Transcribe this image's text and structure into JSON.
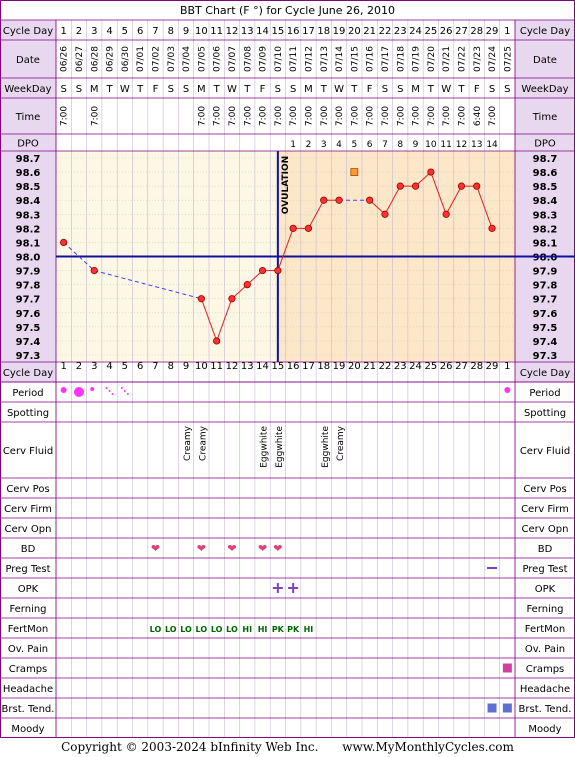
{
  "title": "BBT Chart (F °) for Cycle June 26, 2010",
  "colors": {
    "border": "#800080",
    "header_bg": "#e8d8ef",
    "grid_bg_pre": "#fdf8e6",
    "grid_bg_post": "#fce8c8",
    "temp_line": "#e02020",
    "marker_fill": "#ff3030",
    "coverline": "#1010a0",
    "ovulation_line": "#1010a0",
    "dashed_line": "#4040ff",
    "period_dot": "#ff33ff",
    "heart": "#e0407a",
    "opk": "#8040c0",
    "fertmon_lo": "#006600",
    "square_pink": "#d040a0",
    "square_blue": "#6070d0",
    "orange_square": "#ff9933"
  },
  "row_labels": {
    "cycle_day": "Cycle Day",
    "date": "Date",
    "weekday": "WeekDay",
    "time": "Time",
    "dpo": "DPO",
    "period": "Period",
    "spotting": "Spotting",
    "cerv_fluid": "Cerv Fluid",
    "cerv_pos": "Cerv Pos",
    "cerv_firm": "Cerv Firm",
    "cerv_opn": "Cerv Opn",
    "bd": "BD",
    "preg_test": "Preg Test",
    "opk": "OPK",
    "ferning": "Ferning",
    "fertmon": "FertMon",
    "ov_pain": "Ov. Pain",
    "cramps": "Cramps",
    "headache": "Headache",
    "brst_tend": "Brst. Tend.",
    "moody": "Moody"
  },
  "ovulation_label": "OVULATION",
  "footer": {
    "copyright": "Copyright © 2003-2024 bInfinity Web Inc.",
    "site": "www.MyMonthlyCycles.com"
  },
  "chart_data": {
    "type": "line",
    "title": "BBT Chart (F °) for Cycle June 26, 2010",
    "cycle_days": [
      "1",
      "2",
      "3",
      "4",
      "5",
      "6",
      "7",
      "8",
      "9",
      "10",
      "11",
      "12",
      "13",
      "14",
      "15",
      "16",
      "17",
      "18",
      "19",
      "20",
      "21",
      "22",
      "23",
      "24",
      "25",
      "26",
      "27",
      "28",
      "29",
      "1"
    ],
    "dates": [
      "06/26",
      "06/27",
      "06/28",
      "06/29",
      "06/30",
      "07/01",
      "07/02",
      "07/03",
      "07/04",
      "07/05",
      "07/06",
      "07/07",
      "07/08",
      "07/09",
      "07/10",
      "07/11",
      "07/12",
      "07/13",
      "07/14",
      "07/15",
      "07/16",
      "07/17",
      "07/18",
      "07/19",
      "07/20",
      "07/21",
      "07/22",
      "07/23",
      "07/24",
      "07/25"
    ],
    "weekdays": [
      "S",
      "S",
      "M",
      "T",
      "W",
      "T",
      "F",
      "S",
      "S",
      "M",
      "T",
      "W",
      "T",
      "F",
      "S",
      "S",
      "M",
      "T",
      "W",
      "T",
      "F",
      "S",
      "S",
      "M",
      "T",
      "W",
      "T",
      "F",
      "S",
      "S"
    ],
    "times": [
      "7:00",
      "",
      "7:00",
      "",
      "",
      "",
      "",
      "",
      "",
      "7:00",
      "7:00",
      "7:00",
      "7:00",
      "7:00",
      "7:00",
      "7:00",
      "7:00",
      "7:00",
      "7:00",
      "7:00",
      "7:00",
      "7:00",
      "7:00",
      "7:00",
      "7:00",
      "7:00",
      "7:00",
      "6:40",
      "7:00",
      ""
    ],
    "dpo": [
      "",
      "",
      "",
      "",
      "",
      "",
      "",
      "",
      "",
      "",
      "",
      "",
      "",
      "",
      "",
      "1",
      "2",
      "3",
      "4",
      "5",
      "6",
      "7",
      "8",
      "9",
      "10",
      "11",
      "12",
      "13",
      "14",
      ""
    ],
    "temps": [
      98.1,
      null,
      97.9,
      null,
      null,
      null,
      null,
      null,
      null,
      97.7,
      97.4,
      97.7,
      97.8,
      97.9,
      97.9,
      98.2,
      98.2,
      98.4,
      98.4,
      null,
      98.4,
      98.3,
      98.5,
      98.5,
      98.6,
      98.3,
      98.5,
      98.5,
      98.2,
      null
    ],
    "discarded_temps": [
      {
        "day_index": 19,
        "value": 98.6
      }
    ],
    "y_ticks": [
      "98.7",
      "98.6",
      "98.5",
      "98.4",
      "98.3",
      "98.2",
      "98.1",
      "98.0",
      "97.9",
      "97.8",
      "97.7",
      "97.6",
      "97.5",
      "97.4",
      "97.3"
    ],
    "ylim": [
      97.3,
      98.7
    ],
    "coverline": 98.0,
    "ovulation_after_day_index": 14,
    "period": [
      {
        "day_index": 0,
        "size": "medium"
      },
      {
        "day_index": 1,
        "size": "heavy"
      },
      {
        "day_index": 2,
        "size": "light"
      },
      {
        "day_index": 3,
        "size": "spotting"
      },
      {
        "day_index": 4,
        "size": "spotting"
      },
      {
        "day_index": 29,
        "size": "medium"
      }
    ],
    "cerv_fluid": [
      {
        "day_index": 8,
        "value": "Creamy"
      },
      {
        "day_index": 9,
        "value": "Creamy"
      },
      {
        "day_index": 13,
        "value": "Eggwhite"
      },
      {
        "day_index": 14,
        "value": "Eggwhite"
      },
      {
        "day_index": 17,
        "value": "Eggwhite"
      },
      {
        "day_index": 18,
        "value": "Creamy"
      }
    ],
    "bd_days": [
      6,
      9,
      11,
      13,
      14
    ],
    "preg_test": [
      {
        "day_index": 28,
        "result": "negative"
      }
    ],
    "opk": [
      {
        "day_index": 14,
        "result": "positive"
      },
      {
        "day_index": 15,
        "result": "positive"
      }
    ],
    "fertmon": [
      {
        "day_index": 6,
        "value": "LO"
      },
      {
        "day_index": 7,
        "value": "LO"
      },
      {
        "day_index": 8,
        "value": "LO"
      },
      {
        "day_index": 9,
        "value": "LO"
      },
      {
        "day_index": 10,
        "value": "LO"
      },
      {
        "day_index": 11,
        "value": "LO"
      },
      {
        "day_index": 12,
        "value": "HI"
      },
      {
        "day_index": 13,
        "value": "HI"
      },
      {
        "day_index": 14,
        "value": "PK"
      },
      {
        "day_index": 15,
        "value": "PK"
      },
      {
        "day_index": 16,
        "value": "HI"
      }
    ],
    "cramps_days": [
      29
    ],
    "brst_tend_days": [
      28,
      29
    ]
  }
}
